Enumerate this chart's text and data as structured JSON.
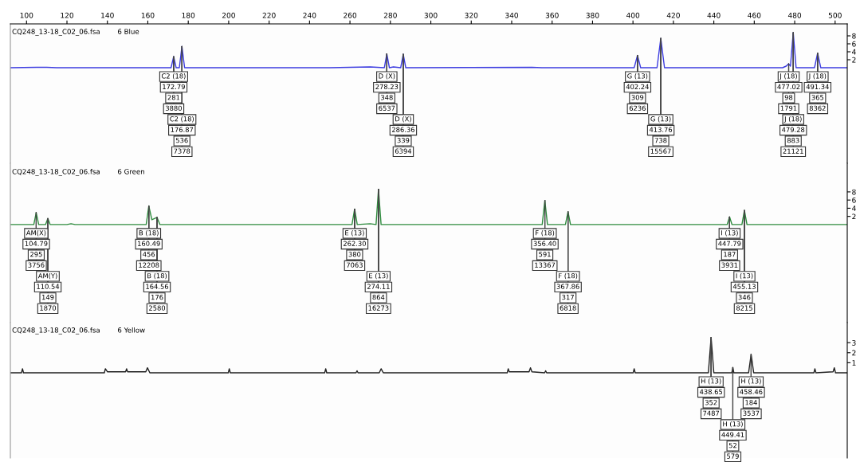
{
  "chart_data": [
    {
      "type": "line",
      "title": "CQ248_13-18_C02_06.fsa",
      "subtitle": "6 Blue",
      "xlim": [
        92,
        506
      ],
      "xticks": [
        100,
        120,
        140,
        160,
        180,
        200,
        220,
        240,
        260,
        280,
        300,
        320,
        340,
        360,
        380,
        400,
        420,
        440,
        460,
        480,
        500
      ],
      "ylim": [
        -24,
        11
      ],
      "yticks": [
        2,
        4,
        6,
        8
      ],
      "series": [
        {
          "color": "#3c3ce0",
          "x": [
            92,
            105,
            110,
            115,
            171.5,
            172.79,
            174,
            175.6,
            176.87,
            178.2,
            250,
            270,
            277,
            278.23,
            279.5,
            281.5,
            285.1,
            286.36,
            287.6,
            350,
            355,
            400.6,
            402.24,
            403.8,
            411.9,
            413.76,
            415.6,
            474,
            475.8,
            477.02,
            477.9,
            479.28,
            480.7,
            489.8,
            491.34,
            492.9,
            506
          ],
          "values": [
            0,
            0.1,
            0.1,
            0,
            0,
            2.81,
            0,
            0,
            5.36,
            0,
            0,
            0.2,
            0,
            3.48,
            0,
            0.2,
            0,
            3.39,
            0,
            0.1,
            0,
            0,
            3.09,
            0,
            0,
            7.38,
            0,
            0,
            0.4,
            0.98,
            0.4,
            8.83,
            0,
            0,
            3.65,
            0,
            0
          ]
        }
      ],
      "annotations": [
        {
          "text": "C2 (18)",
          "x": 172.79,
          "y": 2.81
        },
        {
          "text": "172.79",
          "x": 172.79,
          "y": 2.81
        },
        {
          "text": "281",
          "x": 172.79,
          "y": 2.81
        },
        {
          "text": "3880",
          "x": 172.79,
          "y": 2.81
        },
        {
          "text": "C2 (18)",
          "x": 176.87,
          "y": 5.36
        },
        {
          "text": "176.87",
          "x": 176.87,
          "y": 5.36
        },
        {
          "text": "536",
          "x": 176.87,
          "y": 5.36
        },
        {
          "text": "7378",
          "x": 176.87,
          "y": 5.36
        },
        {
          "text": "D (X)",
          "x": 278.23,
          "y": 3.48
        },
        {
          "text": "278.23",
          "x": 278.23,
          "y": 3.48
        },
        {
          "text": "348",
          "x": 278.23,
          "y": 3.48
        },
        {
          "text": "6537",
          "x": 278.23,
          "y": 3.48
        },
        {
          "text": "D (X)",
          "x": 286.36,
          "y": 3.39
        },
        {
          "text": "286.36",
          "x": 286.36,
          "y": 3.39
        },
        {
          "text": "339",
          "x": 286.36,
          "y": 3.39
        },
        {
          "text": "6394",
          "x": 286.36,
          "y": 3.39
        },
        {
          "text": "G (13)",
          "x": 402.24,
          "y": 3.09
        },
        {
          "text": "402.24",
          "x": 402.24,
          "y": 3.09
        },
        {
          "text": "309",
          "x": 402.24,
          "y": 3.09
        },
        {
          "text": "6236",
          "x": 402.24,
          "y": 3.09
        },
        {
          "text": "G (13)",
          "x": 413.76,
          "y": 7.38
        },
        {
          "text": "413.76",
          "x": 413.76,
          "y": 7.38
        },
        {
          "text": "738",
          "x": 413.76,
          "y": 7.38
        },
        {
          "text": "15567",
          "x": 413.76,
          "y": 7.38
        },
        {
          "text": "J (18)",
          "x": 477.02,
          "y": 0.98
        },
        {
          "text": "477.02",
          "x": 477.02,
          "y": 0.98
        },
        {
          "text": "98",
          "x": 477.02,
          "y": 0.98
        },
        {
          "text": "1791",
          "x": 477.02,
          "y": 0.98
        },
        {
          "text": "J (18)",
          "x": 479.28,
          "y": 8.83
        },
        {
          "text": "479.28",
          "x": 479.28,
          "y": 8.83
        },
        {
          "text": "883",
          "x": 479.28,
          "y": 8.83
        },
        {
          "text": "21121",
          "x": 479.28,
          "y": 8.83
        },
        {
          "text": "J (18)",
          "x": 491.34,
          "y": 3.65
        },
        {
          "text": "491.34",
          "x": 491.34,
          "y": 3.65
        },
        {
          "text": "365",
          "x": 491.34,
          "y": 3.65
        },
        {
          "text": "8362",
          "x": 491.34,
          "y": 3.65
        }
      ]
    },
    {
      "type": "line",
      "title": "CQ248_13-18_C02_06.fsa",
      "subtitle": "6 Green",
      "xlim": [
        92,
        506
      ],
      "ylim": [
        -24,
        15
      ],
      "yticks": [
        2,
        4,
        6,
        8
      ],
      "tick_labels": "y",
      "series": [
        {
          "color": "#2e8b3e",
          "x": [
            92,
            103.6,
            104.79,
            106,
            109.4,
            110.54,
            111.7,
            120,
            122,
            124,
            159.2,
            160.49,
            162,
            164.56,
            166,
            261,
            262.3,
            263.6,
            270,
            272.9,
            274.11,
            275.4,
            355.1,
            356.4,
            357.7,
            366.6,
            367.86,
            369.1,
            446.6,
            447.79,
            449,
            453.9,
            455.13,
            456.4,
            506
          ],
          "values": [
            0,
            0,
            2.95,
            0,
            0,
            1.49,
            0,
            0,
            0.2,
            0,
            0,
            4.56,
            1.2,
            1.76,
            0,
            0,
            3.8,
            0,
            0.2,
            0,
            8.64,
            0,
            0,
            5.91,
            0,
            0,
            3.17,
            0,
            0,
            1.87,
            0,
            0,
            3.46,
            0,
            0
          ]
        }
      ],
      "annotations": [
        {
          "text": "AM(X)",
          "x": 104.79,
          "y": 2.95
        },
        {
          "text": "104.79",
          "x": 104.79,
          "y": 2.95
        },
        {
          "text": "295",
          "x": 104.79,
          "y": 2.95
        },
        {
          "text": "3756",
          "x": 104.79,
          "y": 2.95
        },
        {
          "text": "AM(Y)",
          "x": 110.54,
          "y": 1.49
        },
        {
          "text": "110.54",
          "x": 110.54,
          "y": 1.49
        },
        {
          "text": "149",
          "x": 110.54,
          "y": 1.49
        },
        {
          "text": "1870",
          "x": 110.54,
          "y": 1.49
        },
        {
          "text": "B (18)",
          "x": 160.49,
          "y": 4.56
        },
        {
          "text": "160.49",
          "x": 160.49,
          "y": 4.56
        },
        {
          "text": "456",
          "x": 160.49,
          "y": 4.56
        },
        {
          "text": "12208",
          "x": 160.49,
          "y": 4.56
        },
        {
          "text": "B (18)",
          "x": 164.56,
          "y": 1.76
        },
        {
          "text": "164.56",
          "x": 164.56,
          "y": 1.76
        },
        {
          "text": "176",
          "x": 164.56,
          "y": 1.76
        },
        {
          "text": "2580",
          "x": 164.56,
          "y": 1.76
        },
        {
          "text": "E (13)",
          "x": 262.3,
          "y": 3.8
        },
        {
          "text": "262.30",
          "x": 262.3,
          "y": 3.8
        },
        {
          "text": "380",
          "x": 262.3,
          "y": 3.8
        },
        {
          "text": "7063",
          "x": 262.3,
          "y": 3.8
        },
        {
          "text": "E (13)",
          "x": 274.11,
          "y": 8.64
        },
        {
          "text": "274.11",
          "x": 274.11,
          "y": 8.64
        },
        {
          "text": "864",
          "x": 274.11,
          "y": 8.64
        },
        {
          "text": "16273",
          "x": 274.11,
          "y": 8.64
        },
        {
          "text": "F (18)",
          "x": 356.4,
          "y": 5.91
        },
        {
          "text": "356.40",
          "x": 356.4,
          "y": 5.91
        },
        {
          "text": "591",
          "x": 356.4,
          "y": 5.91
        },
        {
          "text": "13367",
          "x": 356.4,
          "y": 5.91
        },
        {
          "text": "F (18)",
          "x": 367.86,
          "y": 3.17
        },
        {
          "text": "367.86",
          "x": 367.86,
          "y": 3.17
        },
        {
          "text": "317",
          "x": 367.86,
          "y": 3.17
        },
        {
          "text": "6818",
          "x": 367.86,
          "y": 3.17
        },
        {
          "text": "I (13)",
          "x": 447.79,
          "y": 1.87
        },
        {
          "text": "447.79",
          "x": 447.79,
          "y": 1.87
        },
        {
          "text": "187",
          "x": 447.79,
          "y": 1.87
        },
        {
          "text": "3931",
          "x": 447.79,
          "y": 1.87
        },
        {
          "text": "I (13)",
          "x": 455.13,
          "y": 3.46
        },
        {
          "text": "455.13",
          "x": 455.13,
          "y": 3.46
        },
        {
          "text": "346",
          "x": 455.13,
          "y": 3.46
        },
        {
          "text": "8215",
          "x": 455.13,
          "y": 3.46
        }
      ]
    },
    {
      "type": "line",
      "title": "CQ248_13-18_C02_06.fsa",
      "subtitle": "6 Yellow",
      "xlim": [
        92,
        506
      ],
      "ylim": [
        -8.5,
        5
      ],
      "yticks": [
        1,
        2,
        3
      ],
      "tick_labels": "y",
      "series": [
        {
          "color": "#202020",
          "x": [
            92,
            97.5,
            98,
            98.5,
            138.5,
            139,
            140,
            149,
            149.5,
            150,
            159,
            159.8,
            161,
            199.8,
            200.3,
            200.8,
            247.5,
            248,
            248.5,
            263,
            263.5,
            264,
            274.5,
            275.4,
            276.5,
            337.8,
            338.3,
            338.8,
            348.6,
            349.3,
            350,
            356.3,
            356.8,
            357.3,
            400.1,
            400.6,
            401.1,
            437.3,
            438.65,
            440,
            448.9,
            449.41,
            449.9,
            457.2,
            458.46,
            459.7,
            489.5,
            490,
            490.5,
            499,
            499.6,
            500.2,
            506
          ],
          "values": [
            0,
            0,
            0.4,
            0,
            0,
            0.4,
            0.1,
            0.1,
            0.4,
            0.1,
            0.1,
            0.5,
            0,
            0,
            0.4,
            0,
            0,
            0.4,
            0,
            0,
            0.2,
            0,
            0,
            0.4,
            0,
            0,
            0.4,
            0.1,
            0.1,
            0.5,
            0.1,
            0,
            0.2,
            0,
            0,
            0.4,
            0,
            0,
            3.52,
            0,
            0,
            0.52,
            0,
            0,
            1.84,
            0,
            0,
            0.4,
            0,
            0.1,
            0.5,
            0,
            0
          ]
        }
      ],
      "annotations": [
        {
          "text": "H (13)",
          "x": 438.65,
          "y": 3.52
        },
        {
          "text": "438.65",
          "x": 438.65,
          "y": 3.52
        },
        {
          "text": "352",
          "x": 438.65,
          "y": 3.52
        },
        {
          "text": "7487",
          "x": 438.65,
          "y": 3.52
        },
        {
          "text": "H (13)",
          "x": 449.41,
          "y": 0.52
        },
        {
          "text": "449.41",
          "x": 449.41,
          "y": 0.52
        },
        {
          "text": "52",
          "x": 449.41,
          "y": 0.52
        },
        {
          "text": "579",
          "x": 449.41,
          "y": 0.52
        },
        {
          "text": "H (13)",
          "x": 458.46,
          "y": 1.84
        },
        {
          "text": "458.46",
          "x": 458.46,
          "y": 1.84
        },
        {
          "text": "184",
          "x": 458.46,
          "y": 1.84
        },
        {
          "text": "3537",
          "x": 458.46,
          "y": 1.84
        }
      ]
    }
  ]
}
